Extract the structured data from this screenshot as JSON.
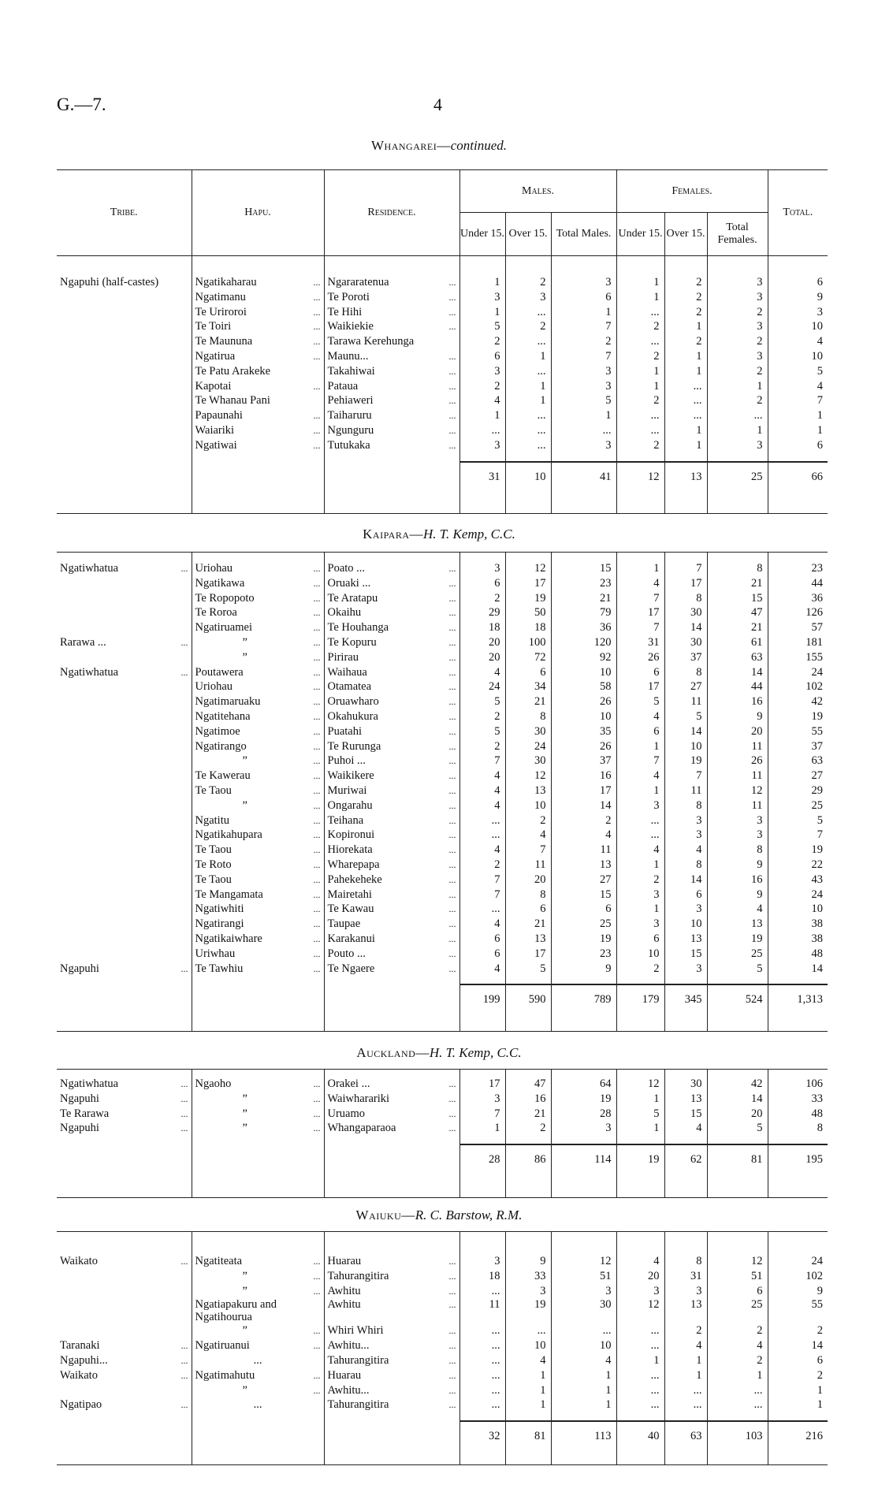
{
  "page": {
    "doc_ref": "G.—7.",
    "page_number": "4"
  },
  "header": {
    "tribe": "Tribe.",
    "hapu": "Hapu.",
    "residence": "Residence.",
    "males": "Males.",
    "females": "Females.",
    "total": "Total.",
    "under15": "Under 15.",
    "over15": "Over 15.",
    "total_males": "Total Males.",
    "total_females": "Total Females."
  },
  "sections": [
    {
      "district": "Whangarei",
      "suffix": "—",
      "officer": "continued.",
      "rows": [
        [
          "Ngapuhi (half-castes)",
          "Ngatikaharau ...",
          "Ngararatenua ...",
          "1",
          "2",
          "3",
          "1",
          "2",
          "3",
          "6"
        ],
        [
          "",
          "Ngatimanu ...",
          "Te Poroti ...",
          "3",
          "3",
          "6",
          "1",
          "2",
          "3",
          "9"
        ],
        [
          "",
          "Te Uriroroi ...",
          "Te Hihi ...",
          "1",
          "...",
          "1",
          "...",
          "2",
          "2",
          "3"
        ],
        [
          "",
          "Te Toiri ...",
          "Waikiekie ...",
          "5",
          "2",
          "7",
          "2",
          "1",
          "3",
          "10"
        ],
        [
          "",
          "Te Maununa ...",
          "Tarawa Kerehunga",
          "2",
          "...",
          "2",
          "...",
          "2",
          "2",
          "4"
        ],
        [
          "",
          "Ngatirua ...",
          "Maunu... ...",
          "6",
          "1",
          "7",
          "2",
          "1",
          "3",
          "10"
        ],
        [
          "",
          "Te Patu Arakeke",
          "Takahiwai ...",
          "3",
          "...",
          "3",
          "1",
          "1",
          "2",
          "5"
        ],
        [
          "",
          "Kapotai ...",
          "Pataua ...",
          "2",
          "1",
          "3",
          "1",
          "...",
          "1",
          "4"
        ],
        [
          "",
          "Te Whanau Pani",
          "Pehiaweri ...",
          "4",
          "1",
          "5",
          "2",
          "...",
          "2",
          "7"
        ],
        [
          "",
          "Papaunahi ...",
          "Taiharuru ...",
          "1",
          "...",
          "1",
          "...",
          "...",
          "...",
          "1"
        ],
        [
          "",
          "Waiariki ...",
          "Ngunguru ...",
          "...",
          "...",
          "...",
          "...",
          "1",
          "1",
          "1"
        ],
        [
          "",
          "Ngatiwai ...",
          "Tutukaka ...",
          "3",
          "...",
          "3",
          "2",
          "1",
          "3",
          "6"
        ]
      ],
      "totals": [
        "31",
        "10",
        "41",
        "12",
        "13",
        "25",
        "66"
      ]
    },
    {
      "district": "Kaipara",
      "suffix": "—",
      "officer": "H. T. Kemp, C.C.",
      "rows": [
        [
          "Ngatiwhatua ...",
          "Uriohau ...",
          "Poato ... ...",
          "3",
          "12",
          "15",
          "1",
          "7",
          "8",
          "23"
        ],
        [
          "",
          "Ngatikawa ...",
          "Oruaki ... ...",
          "6",
          "17",
          "23",
          "4",
          "17",
          "21",
          "44"
        ],
        [
          "",
          "Te Ropopoto ...",
          "Te Aratapu ...",
          "2",
          "19",
          "21",
          "7",
          "8",
          "15",
          "36"
        ],
        [
          "",
          "Te Roroa ...",
          "Okaihu ...",
          "29",
          "50",
          "79",
          "17",
          "30",
          "47",
          "126"
        ],
        [
          "",
          "Ngatiruamei ...",
          "Te Houhanga ...",
          "18",
          "18",
          "36",
          "7",
          "14",
          "21",
          "57"
        ],
        [
          "Rarawa ... ...",
          "” ...",
          "Te Kopuru ...",
          "20",
          "100",
          "120",
          "31",
          "30",
          "61",
          "181"
        ],
        [
          "",
          "” ...",
          "Pirirau ...",
          "20",
          "72",
          "92",
          "26",
          "37",
          "63",
          "155"
        ],
        [
          "Ngatiwhatua ...",
          "Poutawera ...",
          "Waihaua ...",
          "4",
          "6",
          "10",
          "6",
          "8",
          "14",
          "24"
        ],
        [
          "",
          "Uriohau ...",
          "Otamatea ...",
          "24",
          "34",
          "58",
          "17",
          "27",
          "44",
          "102"
        ],
        [
          "",
          "Ngatimaruaku ...",
          "Oruawharo ...",
          "5",
          "21",
          "26",
          "5",
          "11",
          "16",
          "42"
        ],
        [
          "",
          "Ngatitehana ...",
          "Okahukura ...",
          "2",
          "8",
          "10",
          "4",
          "5",
          "9",
          "19"
        ],
        [
          "",
          "Ngatimoe ...",
          "Puatahi ...",
          "5",
          "30",
          "35",
          "6",
          "14",
          "20",
          "55"
        ],
        [
          "",
          "Ngatirango ...",
          "Te Rurunga ...",
          "2",
          "24",
          "26",
          "1",
          "10",
          "11",
          "37"
        ],
        [
          "",
          "” ...",
          "Puhoi ... ...",
          "7",
          "30",
          "37",
          "7",
          "19",
          "26",
          "63"
        ],
        [
          "",
          "Te Kawerau ...",
          "Waikikere ...",
          "4",
          "12",
          "16",
          "4",
          "7",
          "11",
          "27"
        ],
        [
          "",
          "Te Taou ...",
          "Muriwai ...",
          "4",
          "13",
          "17",
          "1",
          "11",
          "12",
          "29"
        ],
        [
          "",
          "” ...",
          "Ongarahu ...",
          "4",
          "10",
          "14",
          "3",
          "8",
          "11",
          "25"
        ],
        [
          "",
          "Ngatitu ...",
          "Teihana ...",
          "...",
          "2",
          "2",
          "...",
          "3",
          "3",
          "5"
        ],
        [
          "",
          "Ngatikahupara ...",
          "Kopironui ...",
          "...",
          "4",
          "4",
          "...",
          "3",
          "3",
          "7"
        ],
        [
          "",
          "Te Taou ...",
          "Hiorekata ...",
          "4",
          "7",
          "11",
          "4",
          "4",
          "8",
          "19"
        ],
        [
          "",
          "Te Roto ...",
          "Wharepapa ...",
          "2",
          "11",
          "13",
          "1",
          "8",
          "9",
          "22"
        ],
        [
          "",
          "Te Taou ...",
          "Pahekeheke ...",
          "7",
          "20",
          "27",
          "2",
          "14",
          "16",
          "43"
        ],
        [
          "",
          "Te Mangamata ...",
          "Mairetahi ...",
          "7",
          "8",
          "15",
          "3",
          "6",
          "9",
          "24"
        ],
        [
          "",
          "Ngatiwhiti ...",
          "Te Kawau ...",
          "...",
          "6",
          "6",
          "1",
          "3",
          "4",
          "10"
        ],
        [
          "",
          "Ngatirangi ...",
          "Taupae ...",
          "4",
          "21",
          "25",
          "3",
          "10",
          "13",
          "38"
        ],
        [
          "",
          "Ngatikaiwhare ...",
          "Karakanui ...",
          "6",
          "13",
          "19",
          "6",
          "13",
          "19",
          "38"
        ],
        [
          "",
          "Uriwhau ...",
          "Pouto ... ...",
          "6",
          "17",
          "23",
          "10",
          "15",
          "25",
          "48"
        ],
        [
          "Ngapuhi ...",
          "Te Tawhiu ...",
          "Te Ngaere ...",
          "4",
          "5",
          "9",
          "2",
          "3",
          "5",
          "14"
        ]
      ],
      "totals": [
        "199",
        "590",
        "789",
        "179",
        "345",
        "524",
        "1,313"
      ]
    },
    {
      "district": "Auckland",
      "suffix": "—",
      "officer": "H. T. Kemp, C.C.",
      "rows": [
        [
          "Ngatiwhatua ...",
          "Ngaoho ...",
          "Orakei ... ...",
          "17",
          "47",
          "64",
          "12",
          "30",
          "42",
          "106"
        ],
        [
          "Ngapuhi ...",
          "” ...",
          "Waiwharariki ...",
          "3",
          "16",
          "19",
          "1",
          "13",
          "14",
          "33"
        ],
        [
          "Te Rarawa ...",
          "” ...",
          "Uruamo ...",
          "7",
          "21",
          "28",
          "5",
          "15",
          "20",
          "48"
        ],
        [
          "Ngapuhi ...",
          "” ...",
          "Whangaparaoa ...",
          "1",
          "2",
          "3",
          "1",
          "4",
          "5",
          "8"
        ]
      ],
      "totals": [
        "28",
        "86",
        "114",
        "19",
        "62",
        "81",
        "195"
      ]
    },
    {
      "district": "Waiuku",
      "suffix": "—",
      "officer": "R. C. Barstow, R.M.",
      "rows": [
        [
          "Waikato ...",
          "Ngatiteata ...",
          "Huarau ...",
          "3",
          "9",
          "12",
          "4",
          "8",
          "12",
          "24"
        ],
        [
          "",
          "” ...",
          "Tahurangitira ...",
          "18",
          "33",
          "51",
          "20",
          "31",
          "51",
          "102"
        ],
        [
          "",
          "” ...",
          "Awhitu ...",
          "...",
          "3",
          "3",
          "3",
          "3",
          "6",
          "9"
        ],
        [
          "",
          "Ngatiapakuru and Ngatihourua",
          "Awhitu ...",
          "11",
          "19",
          "30",
          "12",
          "13",
          "25",
          "55"
        ],
        [
          "",
          "” ...",
          "Whiri Whiri ...",
          "...",
          "...",
          "...",
          "...",
          "2",
          "2",
          "2"
        ],
        [
          "Taranaki ...",
          "Ngatiruanui ...",
          "Awhitu... ...",
          "...",
          "10",
          "10",
          "...",
          "4",
          "4",
          "14"
        ],
        [
          "Ngapuhi... ...",
          "...",
          "Tahurangitira ...",
          "...",
          "4",
          "4",
          "1",
          "1",
          "2",
          "6"
        ],
        [
          "Waikato ...",
          "Ngatimahutu ...",
          "Huarau ...",
          "...",
          "1",
          "1",
          "...",
          "1",
          "1",
          "2"
        ],
        [
          "",
          "” ...",
          "Awhitu... ...",
          "...",
          "1",
          "1",
          "...",
          "...",
          "...",
          "1"
        ],
        [
          "Ngatipao ...",
          "...",
          "Tahurangitira ...",
          "...",
          "1",
          "1",
          "...",
          "...",
          "...",
          "1"
        ]
      ],
      "totals": [
        "32",
        "81",
        "113",
        "40",
        "63",
        "103",
        "216"
      ]
    }
  ]
}
